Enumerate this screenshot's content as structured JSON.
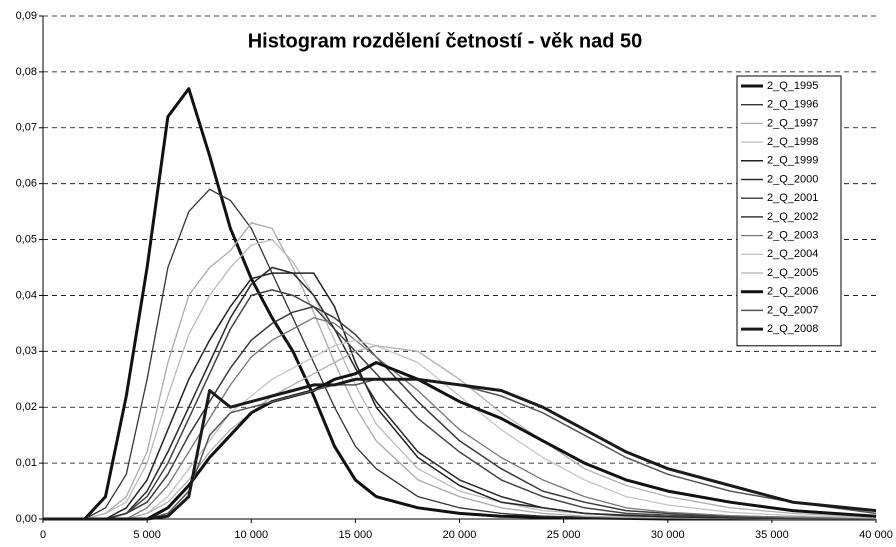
{
  "chart_data": {
    "type": "line",
    "title": "Histogram rozdělení četností  - věk nad 50",
    "x": [
      0,
      2000,
      3000,
      4000,
      5000,
      6000,
      7000,
      8000,
      9000,
      10000,
      11000,
      12000,
      13000,
      14000,
      15000,
      16000,
      18000,
      20000,
      22000,
      24000,
      26000,
      28000,
      30000,
      33000,
      36000,
      40000
    ],
    "xlim": [
      0,
      40000
    ],
    "xticks": [
      0,
      {
        "value": 5000,
        "label": "5 000"
      },
      {
        "value": 10000,
        "label": "10 000"
      },
      {
        "value": 15000,
        "label": "15 000"
      },
      {
        "value": 20000,
        "label": "20 000"
      },
      {
        "value": 25000,
        "label": "25 000"
      },
      {
        "value": 30000,
        "label": "30 000"
      },
      {
        "value": 35000,
        "label": "35 000"
      },
      {
        "value": 40000,
        "label": "40 000"
      }
    ],
    "ylim": [
      0,
      0.09
    ],
    "yticks": [
      {
        "value": 0,
        "label": "0,00"
      },
      {
        "value": 0.01,
        "label": "0,01"
      },
      {
        "value": 0.02,
        "label": "0,02"
      },
      {
        "value": 0.03,
        "label": "0,03"
      },
      {
        "value": 0.04,
        "label": "0,04"
      },
      {
        "value": 0.05,
        "label": "0,05"
      },
      {
        "value": 0.06,
        "label": "0,06"
      },
      {
        "value": 0.07,
        "label": "0,07"
      },
      {
        "value": 0.08,
        "label": "0,08"
      },
      {
        "value": 0.09,
        "label": "0,09"
      }
    ],
    "grid": true,
    "legend": "right",
    "series": [
      {
        "name": "2_Q_1995",
        "color": "#111111",
        "values": [
          0,
          0,
          0.004,
          0.022,
          0.045,
          0.072,
          0.077,
          0.065,
          0.052,
          0.043,
          0.036,
          0.03,
          0.022,
          0.013,
          0.007,
          0.004,
          0.002,
          0.001,
          0.0005,
          0.0003,
          0.0002,
          0.0001,
          0,
          0,
          0,
          0
        ]
      },
      {
        "name": "2_Q_1996",
        "color": "#333333",
        "values": [
          0,
          0,
          0.002,
          0.008,
          0.025,
          0.045,
          0.055,
          0.059,
          0.057,
          0.052,
          0.044,
          0.036,
          0.028,
          0.02,
          0.013,
          0.009,
          0.004,
          0.002,
          0.001,
          0.0005,
          0.0003,
          0.0002,
          0.0001,
          0,
          0,
          0
        ]
      },
      {
        "name": "2_Q_1997",
        "color": "#aaaaaa",
        "values": [
          0,
          0,
          0.001,
          0.004,
          0.012,
          0.028,
          0.04,
          0.045,
          0.048,
          0.053,
          0.052,
          0.045,
          0.037,
          0.028,
          0.02,
          0.014,
          0.007,
          0.004,
          0.002,
          0.001,
          0.0005,
          0.0003,
          0.0002,
          0.0001,
          0,
          0
        ]
      },
      {
        "name": "2_Q_1998",
        "color": "#bbbbbb",
        "values": [
          0,
          0,
          0.001,
          0.003,
          0.01,
          0.022,
          0.033,
          0.04,
          0.045,
          0.049,
          0.05,
          0.046,
          0.04,
          0.032,
          0.024,
          0.017,
          0.009,
          0.005,
          0.003,
          0.0015,
          0.001,
          0.0005,
          0.0003,
          0.0002,
          0.0001,
          0
        ]
      },
      {
        "name": "2_Q_1999",
        "color": "#222222",
        "values": [
          0,
          0,
          0,
          0.002,
          0.007,
          0.016,
          0.025,
          0.032,
          0.038,
          0.043,
          0.044,
          0.044,
          0.044,
          0.038,
          0.028,
          0.02,
          0.011,
          0.006,
          0.003,
          0.002,
          0.001,
          0.0006,
          0.0004,
          0.0002,
          0.0001,
          0
        ]
      },
      {
        "name": "2_Q_2000",
        "color": "#2a2a2a",
        "values": [
          0,
          0,
          0,
          0.001,
          0.005,
          0.012,
          0.02,
          0.028,
          0.036,
          0.042,
          0.045,
          0.044,
          0.04,
          0.034,
          0.027,
          0.021,
          0.012,
          0.007,
          0.004,
          0.002,
          0.001,
          0.0007,
          0.0004,
          0.0002,
          0.0001,
          0
        ]
      },
      {
        "name": "2_Q_2001",
        "color": "#444444",
        "values": [
          0,
          0,
          0,
          0.001,
          0.004,
          0.01,
          0.018,
          0.026,
          0.034,
          0.04,
          0.041,
          0.04,
          0.038,
          0.034,
          0.03,
          0.026,
          0.018,
          0.012,
          0.007,
          0.004,
          0.002,
          0.001,
          0.0007,
          0.0004,
          0.0002,
          0
        ]
      },
      {
        "name": "2_Q_2002",
        "color": "#3a3a3a",
        "values": [
          0,
          0,
          0,
          0.001,
          0.003,
          0.008,
          0.015,
          0.021,
          0.027,
          0.032,
          0.035,
          0.037,
          0.038,
          0.036,
          0.033,
          0.029,
          0.021,
          0.014,
          0.009,
          0.005,
          0.003,
          0.0015,
          0.001,
          0.0005,
          0.0003,
          0.0001
        ]
      },
      {
        "name": "2_Q_2003",
        "color": "#777777",
        "values": [
          0,
          0,
          0,
          0,
          0.002,
          0.006,
          0.012,
          0.018,
          0.024,
          0.029,
          0.032,
          0.034,
          0.036,
          0.035,
          0.032,
          0.029,
          0.023,
          0.016,
          0.011,
          0.007,
          0.004,
          0.002,
          0.0012,
          0.0006,
          0.0003,
          0.0001
        ]
      },
      {
        "name": "2_Q_2004",
        "color": "#c4c4c4",
        "values": [
          0,
          0,
          0,
          0,
          0.001,
          0.004,
          0.009,
          0.014,
          0.019,
          0.022,
          0.025,
          0.027,
          0.029,
          0.031,
          0.032,
          0.031,
          0.028,
          0.022,
          0.016,
          0.011,
          0.007,
          0.004,
          0.0025,
          0.0012,
          0.0006,
          0.0002
        ]
      },
      {
        "name": "2_Q_2005",
        "color": "#b0b0b0",
        "values": [
          0,
          0,
          0,
          0,
          0.001,
          0.003,
          0.007,
          0.012,
          0.016,
          0.019,
          0.022,
          0.024,
          0.026,
          0.028,
          0.03,
          0.031,
          0.03,
          0.025,
          0.019,
          0.014,
          0.009,
          0.006,
          0.004,
          0.002,
          0.001,
          0.0003
        ]
      },
      {
        "name": "2_Q_2006",
        "color": "#111111",
        "values": [
          0,
          0,
          0,
          0,
          0,
          0.002,
          0.006,
          0.011,
          0.015,
          0.019,
          0.021,
          0.022,
          0.023,
          0.025,
          0.026,
          0.028,
          0.025,
          0.021,
          0.018,
          0.014,
          0.01,
          0.007,
          0.005,
          0.003,
          0.0015,
          0.0005
        ]
      },
      {
        "name": "2_Q_2007",
        "color": "#555555",
        "values": [
          0,
          0,
          0,
          0,
          0,
          0.001,
          0.005,
          0.015,
          0.019,
          0.02,
          0.021,
          0.022,
          0.023,
          0.024,
          0.024,
          0.025,
          0.025,
          0.024,
          0.022,
          0.019,
          0.015,
          0.011,
          0.008,
          0.005,
          0.003,
          0.001
        ]
      },
      {
        "name": "2_Q_2008",
        "color": "#1a1a1a",
        "values": [
          0,
          0,
          0,
          0,
          0,
          0.0005,
          0.004,
          0.023,
          0.02,
          0.021,
          0.022,
          0.023,
          0.024,
          0.024,
          0.025,
          0.025,
          0.025,
          0.024,
          0.023,
          0.02,
          0.016,
          0.012,
          0.009,
          0.006,
          0.003,
          0.0015
        ]
      }
    ]
  }
}
